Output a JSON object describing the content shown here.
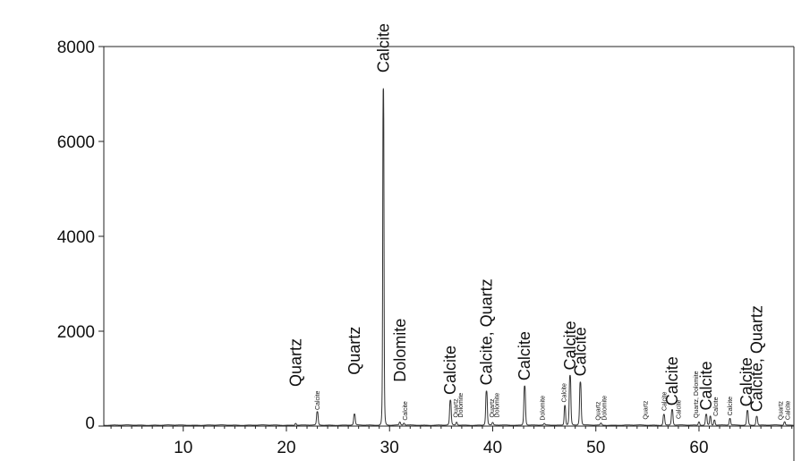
{
  "chart_data": {
    "type": "line",
    "title": "",
    "xlabel": "",
    "ylabel": "",
    "xlim": [
      2.3,
      69.2
    ],
    "ylim": [
      0,
      8000
    ],
    "y_ticks": [
      "0",
      "2000",
      "4000",
      "6000",
      "8000"
    ],
    "x_ticks": [
      "10",
      "20",
      "30",
      "40",
      "50",
      "60"
    ],
    "x_tick_values": [
      10,
      20,
      30,
      40,
      50,
      60
    ],
    "grid": false,
    "baseline": 20,
    "peaks": [
      {
        "x": 20.9,
        "y": 40,
        "w": 0.08
      },
      {
        "x": 23.0,
        "y": 280,
        "w": 0.09
      },
      {
        "x": 26.6,
        "y": 230,
        "w": 0.09
      },
      {
        "x": 29.4,
        "y": 7100,
        "w": 0.07
      },
      {
        "x": 31.0,
        "y": 60,
        "w": 0.08
      },
      {
        "x": 31.4,
        "y": 40,
        "w": 0.08
      },
      {
        "x": 35.9,
        "y": 520,
        "w": 0.09
      },
      {
        "x": 36.5,
        "y": 60,
        "w": 0.08
      },
      {
        "x": 39.4,
        "y": 720,
        "w": 0.09
      },
      {
        "x": 40.0,
        "y": 50,
        "w": 0.08
      },
      {
        "x": 43.1,
        "y": 830,
        "w": 0.09
      },
      {
        "x": 45.0,
        "y": 30,
        "w": 0.08
      },
      {
        "x": 47.0,
        "y": 420,
        "w": 0.08
      },
      {
        "x": 47.5,
        "y": 1050,
        "w": 0.09
      },
      {
        "x": 48.5,
        "y": 910,
        "w": 0.09
      },
      {
        "x": 50.5,
        "y": 40,
        "w": 0.08
      },
      {
        "x": 56.6,
        "y": 230,
        "w": 0.09
      },
      {
        "x": 57.4,
        "y": 330,
        "w": 0.09
      },
      {
        "x": 60.0,
        "y": 70,
        "w": 0.08
      },
      {
        "x": 60.7,
        "y": 230,
        "w": 0.09
      },
      {
        "x": 61.1,
        "y": 190,
        "w": 0.08
      },
      {
        "x": 61.5,
        "y": 110,
        "w": 0.08
      },
      {
        "x": 63.0,
        "y": 140,
        "w": 0.08
      },
      {
        "x": 64.7,
        "y": 310,
        "w": 0.09
      },
      {
        "x": 65.6,
        "y": 190,
        "w": 0.09
      },
      {
        "x": 68.3,
        "y": 70,
        "w": 0.08
      }
    ],
    "annotations": [
      {
        "text": "Quartz",
        "x": 20.9,
        "y": 830,
        "size": "big"
      },
      {
        "text": "Calcite",
        "x": 23.0,
        "y": 340,
        "size": "small"
      },
      {
        "text": "Quartz",
        "x": 26.6,
        "y": 1080,
        "size": "big"
      },
      {
        "text": "Calcite",
        "x": 29.4,
        "y": 7450,
        "size": "big"
      },
      {
        "text": "Dolomite",
        "x": 31.0,
        "y": 930,
        "size": "big"
      },
      {
        "text": "Calcite",
        "x": 31.5,
        "y": 120,
        "size": "small"
      },
      {
        "text": "Calcite",
        "x": 35.9,
        "y": 660,
        "size": "big"
      },
      {
        "text": "Quartz",
        "x": 36.4,
        "y": 180,
        "size": "small"
      },
      {
        "text": "Dolomite",
        "x": 36.9,
        "y": 180,
        "size": "small"
      },
      {
        "text": "Calcite, Quartz",
        "x": 39.4,
        "y": 860,
        "size": "big"
      },
      {
        "text": "Quartz",
        "x": 39.9,
        "y": 180,
        "size": "small"
      },
      {
        "text": "Dolomite",
        "x": 40.4,
        "y": 180,
        "size": "small"
      },
      {
        "text": "Calcite",
        "x": 43.1,
        "y": 960,
        "size": "big"
      },
      {
        "text": "Dolomite",
        "x": 44.8,
        "y": 120,
        "size": "small"
      },
      {
        "text": "Calcite",
        "x": 46.9,
        "y": 500,
        "size": "small"
      },
      {
        "text": "Calcite",
        "x": 47.5,
        "y": 1180,
        "size": "big"
      },
      {
        "text": "Calcite",
        "x": 48.5,
        "y": 1050,
        "size": "big"
      },
      {
        "text": "Quartz",
        "x": 50.2,
        "y": 120,
        "size": "small"
      },
      {
        "text": "Dolomite",
        "x": 50.8,
        "y": 120,
        "size": "small"
      },
      {
        "text": "Quartz",
        "x": 54.8,
        "y": 140,
        "size": "small"
      },
      {
        "text": "Calcite",
        "x": 56.6,
        "y": 320,
        "size": "small"
      },
      {
        "text": "Calcite",
        "x": 57.4,
        "y": 430,
        "size": "big"
      },
      {
        "text": "Calcite",
        "x": 58.0,
        "y": 150,
        "size": "small"
      },
      {
        "text": "Quartz, Dolomite",
        "x": 59.7,
        "y": 170,
        "size": "small"
      },
      {
        "text": "Calcite",
        "x": 60.7,
        "y": 330,
        "size": "big"
      },
      {
        "text": "Calcite",
        "x": 61.6,
        "y": 210,
        "size": "small"
      },
      {
        "text": "Calcite",
        "x": 63.0,
        "y": 220,
        "size": "small"
      },
      {
        "text": "Calcite",
        "x": 64.6,
        "y": 410,
        "size": "big"
      },
      {
        "text": "Calcite, Quartz",
        "x": 65.6,
        "y": 300,
        "size": "big"
      },
      {
        "text": "Quartz",
        "x": 67.9,
        "y": 130,
        "size": "small"
      },
      {
        "text": "Calcite",
        "x": 68.6,
        "y": 130,
        "size": "small"
      }
    ]
  }
}
